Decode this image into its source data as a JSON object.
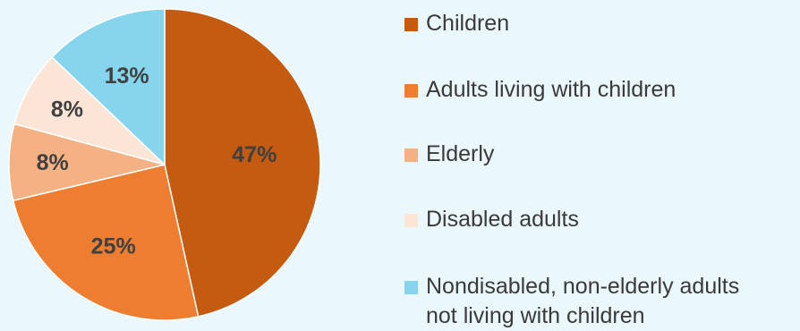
{
  "chart_data": {
    "type": "pie",
    "title": "",
    "start_angle_deg": 0,
    "direction": "clockwise",
    "legend_position": "right",
    "slices": [
      {
        "name": "Children",
        "value": 47,
        "label": "47%",
        "color": "#c55a11"
      },
      {
        "name": "Adults living with children",
        "value": 25,
        "label": "25%",
        "color": "#ed7d31"
      },
      {
        "name": "Elderly",
        "value": 8,
        "label": "8%",
        "color": "#f4b183"
      },
      {
        "name": "Disabled adults",
        "value": 8,
        "label": "8%",
        "color": "#fbe5d6"
      },
      {
        "name": "Nondisabled, non-elderly adults\nnot living with children",
        "value": 13,
        "label": "13%",
        "color": "#86d5ec"
      }
    ]
  },
  "colors": {
    "background": "#eaf7fd",
    "label_text": "#404040",
    "legend_text": "#3a3a3a"
  }
}
